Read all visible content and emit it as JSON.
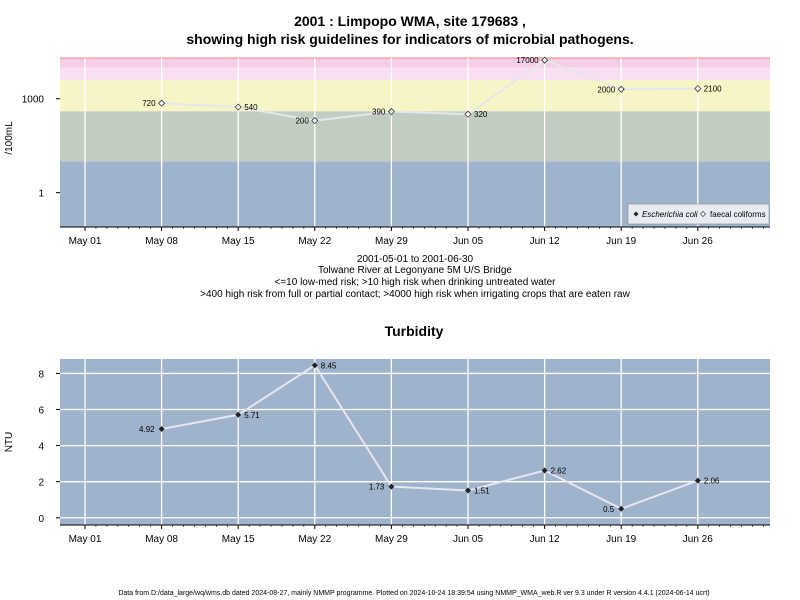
{
  "chart_data": [
    {
      "type": "line",
      "title_line1": "2001 : Limpopo WMA, site 179683 ,",
      "title_line2": "showing high risk guidelines for indicators of microbial pathogens.",
      "ylabel": "/100mL",
      "yscale": "log",
      "yticks": [
        1,
        1000
      ],
      "ytick_labels": [
        "1",
        "1000"
      ],
      "ylim": [
        0.08,
        20000
      ],
      "x_ticks": [
        "May 01",
        "May 08",
        "May 15",
        "May 22",
        "May 29",
        "Jun 05",
        "Jun 12",
        "Jun 19",
        "Jun 26"
      ],
      "bands": [
        {
          "from": 0.08,
          "to": 10,
          "color": "#a0b3cc"
        },
        {
          "from": 10,
          "to": 400,
          "color": "#c2cdc2"
        },
        {
          "from": 400,
          "to": 4000,
          "color": "#f7f4c6"
        },
        {
          "from": 4000,
          "to": 10000,
          "color": "#f9dff3"
        },
        {
          "from": 10000,
          "to": 20000,
          "color": "#f6cfe6"
        }
      ],
      "series": [
        {
          "name": "faecal coliforms",
          "marker": "open-diamond",
          "x": [
            "May 08",
            "May 15",
            "May 22",
            "May 29",
            "Jun 05",
            "Jun 12",
            "Jun 19",
            "Jun 26"
          ],
          "values": [
            720,
            540,
            200,
            390,
            320,
            17000,
            2000,
            2100
          ],
          "labels": [
            "720",
            "540",
            "200",
            "390",
            "320",
            "17000",
            "2000",
            "2100"
          ]
        }
      ],
      "legend": {
        "position": "bottom-right",
        "items": [
          {
            "label": "Escherichia coli",
            "marker": "filled-diamond",
            "italic": true
          },
          {
            "label": "faecal coliforms",
            "marker": "open-diamond",
            "italic": false
          }
        ]
      },
      "caption": [
        "2001-05-01 to 2001-06-30",
        "Tolwane River at Legonyane 5M U/S Bridge",
        "<=10 low-med risk; >10 high risk when drinking untreated water",
        ">400 high risk from full or partial contact; >4000 high risk when irrigating crops that are eaten raw"
      ]
    },
    {
      "type": "line",
      "title": "Turbidity",
      "ylabel": "NTU",
      "ylim": [
        -0.4,
        8.8
      ],
      "yticks": [
        0,
        2,
        4,
        6,
        8
      ],
      "x_ticks": [
        "May 01",
        "May 08",
        "May 15",
        "May 22",
        "May 29",
        "Jun 05",
        "Jun 12",
        "Jun 19",
        "Jun 26"
      ],
      "background": "#a0b3cc",
      "series": [
        {
          "name": "",
          "marker": "filled-diamond",
          "x": [
            "May 08",
            "May 15",
            "May 22",
            "May 29",
            "Jun 05",
            "Jun 12",
            "Jun 19",
            "Jun 26"
          ],
          "values": [
            4.92,
            5.71,
            8.45,
            1.73,
            1.51,
            2.62,
            0.5,
            2.06
          ],
          "labels": [
            "4.92",
            "5.71",
            "8.45",
            "1.73",
            "1.51",
            "2.62",
            "0.5",
            "2.06"
          ]
        }
      ]
    }
  ],
  "footer": "Data from D:/data_large/wq/wms.db dated 2024-08-27, mainly NMMP programme. Plotted on 2024-10-24 18:39:54 using NMMP_WMA_web.R ver 9.3 under R version 4.4.1 (2024-06-14 ucrt)"
}
